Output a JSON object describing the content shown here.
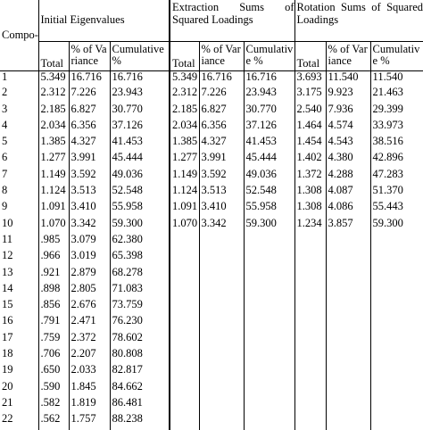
{
  "headers": {
    "component": "Compo-nent",
    "initial_eigenvalues": "Initial Eigenvalues",
    "extraction": "Extraction Sums of Squared Loadings",
    "rotation": "Rotation Sums of Squared Loadings",
    "total": "Total",
    "pct_variance": "% of Variance",
    "cumulative": "Cumulative %"
  },
  "rows": [
    [
      "1",
      "5.349",
      "16.716",
      "16.716",
      "5.349",
      "16.716",
      "16.716",
      "3.693",
      "11.540",
      "11.540"
    ],
    [
      "2",
      "2.312",
      "7.226",
      "23.943",
      "2.312",
      "7.226",
      "23.943",
      "3.175",
      "9.923",
      "21.463"
    ],
    [
      "3",
      "2.185",
      "6.827",
      "30.770",
      "2.185",
      "6.827",
      "30.770",
      "2.540",
      "7.936",
      "29.399"
    ],
    [
      "4",
      "2.034",
      "6.356",
      "37.126",
      "2.034",
      "6.356",
      "37.126",
      "1.464",
      "4.574",
      "33.973"
    ],
    [
      "5",
      "1.385",
      "4.327",
      "41.453",
      "1.385",
      "4.327",
      "41.453",
      "1.454",
      "4.543",
      "38.516"
    ],
    [
      "6",
      "1.277",
      "3.991",
      "45.444",
      "1.277",
      "3.991",
      "45.444",
      "1.402",
      "4.380",
      "42.896"
    ],
    [
      "7",
      "1.149",
      "3.592",
      "49.036",
      "1.149",
      "3.592",
      "49.036",
      "1.372",
      "4.288",
      "47.283"
    ],
    [
      "8",
      "1.124",
      "3.513",
      "52.548",
      "1.124",
      "3.513",
      "52.548",
      "1.308",
      "4.087",
      "51.370"
    ],
    [
      "9",
      "1.091",
      "3.410",
      "55.958",
      "1.091",
      "3.410",
      "55.958",
      "1.308",
      "4.086",
      "55.443"
    ],
    [
      "10",
      "1.070",
      "3.342",
      "59.300",
      "1.070",
      "3.342",
      "59.300",
      "1.234",
      "3.857",
      "59.300"
    ],
    [
      "11",
      ".985",
      "3.079",
      "62.380",
      "",
      "",
      "",
      "",
      "",
      ""
    ],
    [
      "12",
      ".966",
      "3.019",
      "65.398",
      "",
      "",
      "",
      "",
      "",
      ""
    ],
    [
      "13",
      ".921",
      "2.879",
      "68.278",
      "",
      "",
      "",
      "",
      "",
      ""
    ],
    [
      "14",
      ".898",
      "2.805",
      "71.083",
      "",
      "",
      "",
      "",
      "",
      ""
    ],
    [
      "15",
      ".856",
      "2.676",
      "73.759",
      "",
      "",
      "",
      "",
      "",
      ""
    ],
    [
      "16",
      ".791",
      "2.471",
      "76.230",
      "",
      "",
      "",
      "",
      "",
      ""
    ],
    [
      "17",
      ".759",
      "2.372",
      "78.602",
      "",
      "",
      "",
      "",
      "",
      ""
    ],
    [
      "18",
      ".706",
      "2.207",
      "80.808",
      "",
      "",
      "",
      "",
      "",
      ""
    ],
    [
      "19",
      ".650",
      "2.033",
      "82.817",
      "",
      "",
      "",
      "",
      "",
      ""
    ],
    [
      "20",
      ".590",
      "1.845",
      "84.662",
      "",
      "",
      "",
      "",
      "",
      ""
    ],
    [
      "21",
      ".582",
      "1.819",
      "86.481",
      "",
      "",
      "",
      "",
      "",
      ""
    ],
    [
      "22",
      ".562",
      "1.757",
      "88.238",
      "",
      "",
      "",
      "",
      "",
      ""
    ]
  ]
}
